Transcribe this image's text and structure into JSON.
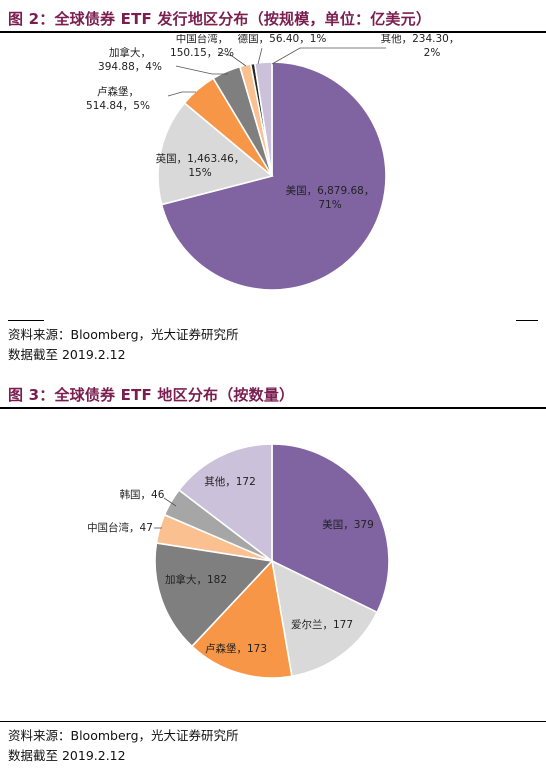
{
  "figure1": {
    "title": "图 2：全球债券 ETF 发行地区分布（按规模，单位：亿美元）",
    "source_line": "资料来源：Bloomberg，光大证券研究所",
    "date_line": "数据截至 2019.2.12"
  },
  "figure2": {
    "title": "图 3：全球债券 ETF 地区分布（按数量）",
    "source_line": "资料来源：Bloomberg，光大证券研究所",
    "date_line": "数据截至 2019.2.12"
  },
  "chart_data": [
    {
      "type": "pie",
      "title": "图 2：全球债券 ETF 发行地区分布（按规模，单位：亿美元）",
      "unit": "亿美元",
      "slices": [
        {
          "label": "美国",
          "value": 6879.68,
          "text": "美国，6,879.68，",
          "text2": "71%",
          "color": "#8064a2"
        },
        {
          "label": "英国",
          "value": 1463.46,
          "text": "英国，1,463.46，",
          "text2": "15%",
          "color": "#d9d9d9"
        },
        {
          "label": "卢森堡",
          "value": 514.84,
          "text": "卢森堡，",
          "text2": "514.84，5%",
          "color": "#f79646"
        },
        {
          "label": "加拿大",
          "value": 394.88,
          "text": "加拿大，",
          "text2": "394.88，4%",
          "color": "#7f7f7f"
        },
        {
          "label": "中国台湾",
          "value": 150.15,
          "text": "中国台湾，",
          "text2": "150.15，2%",
          "color": "#fac090"
        },
        {
          "label": "德国",
          "value": 56.4,
          "text": "德国，56.40，1%",
          "text2": "",
          "color": "#262626"
        },
        {
          "label": "其他",
          "value": 234.3,
          "text": "其他，234.30，",
          "text2": "2%",
          "color": "#ccc1da"
        }
      ]
    },
    {
      "type": "pie",
      "title": "图 3：全球债券 ETF 地区分布（按数量）",
      "slices": [
        {
          "label": "美国",
          "value": 379,
          "text": "美国，379",
          "color": "#8064a2"
        },
        {
          "label": "爱尔兰",
          "value": 177,
          "text": "爱尔兰，177",
          "color": "#d9d9d9"
        },
        {
          "label": "卢森堡",
          "value": 173,
          "text": "卢森堡，173",
          "color": "#f79646"
        },
        {
          "label": "加拿大",
          "value": 182,
          "text": "加拿大，182",
          "color": "#7f7f7f"
        },
        {
          "label": "中国台湾",
          "value": 47,
          "text": "中国台湾，47",
          "color": "#fac090"
        },
        {
          "label": "韩国",
          "value": 46,
          "text": "韩国，46",
          "color": "#a6a6a6"
        },
        {
          "label": "其他",
          "value": 172,
          "text": "其他，172",
          "color": "#ccc1da"
        }
      ]
    }
  ]
}
